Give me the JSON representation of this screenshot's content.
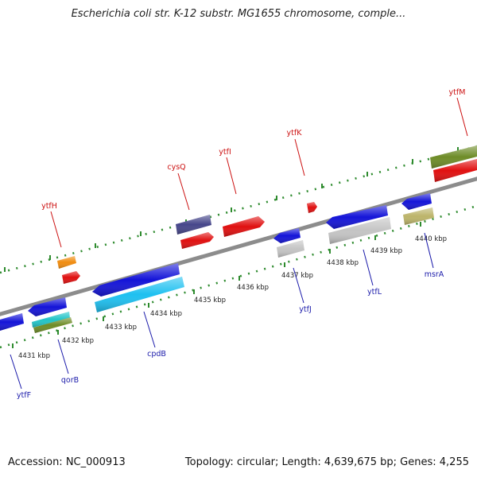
{
  "title": "Escherichia coli str. K-12 substr. MG1655 chromosome, comple...",
  "footer": {
    "accession": "Accession: NC_000913",
    "summary": "Topology: circular; Length: 4,639,675 bp; Genes: 4,255"
  },
  "ticks": [
    "4431 kbp",
    "4432 kbp",
    "4433 kbp",
    "4434 kbp",
    "4435 kbp",
    "4436 kbp",
    "4437 kbp",
    "4438 kbp",
    "4439 kbp",
    "4440 kbp"
  ],
  "genes_top": [
    {
      "label": "ytfH",
      "color": "#cc1111"
    },
    {
      "label": "cysQ",
      "color": "#cc1111"
    },
    {
      "label": "ytfI",
      "color": "#cc1111"
    },
    {
      "label": "ytfK",
      "color": "#cc1111"
    },
    {
      "label": "ytfM",
      "color": "#cc1111"
    }
  ],
  "genes_bottom": [
    {
      "label": "ytfF",
      "color": "#1a1aaa"
    },
    {
      "label": "qorB",
      "color": "#1a1aaa"
    },
    {
      "label": "cpdB",
      "color": "#1a1aaa"
    },
    {
      "label": "ytfJ",
      "color": "#1a1aaa"
    },
    {
      "label": "ytfL",
      "color": "#1a1aaa"
    },
    {
      "label": "msrA",
      "color": "#1a1aaa"
    }
  ],
  "colors": {
    "backbone": "#8c8c8c",
    "dots": "#2e8b2e",
    "red": "#e01010",
    "blue": "#1414d8",
    "cyan": "#1ec0f0",
    "olive": "#6e8c28",
    "navy": "#46468a",
    "gray": "#c4c4c4",
    "khaki": "#bcb46a",
    "orange": "#f08c10",
    "teal": "#22c4c8"
  }
}
